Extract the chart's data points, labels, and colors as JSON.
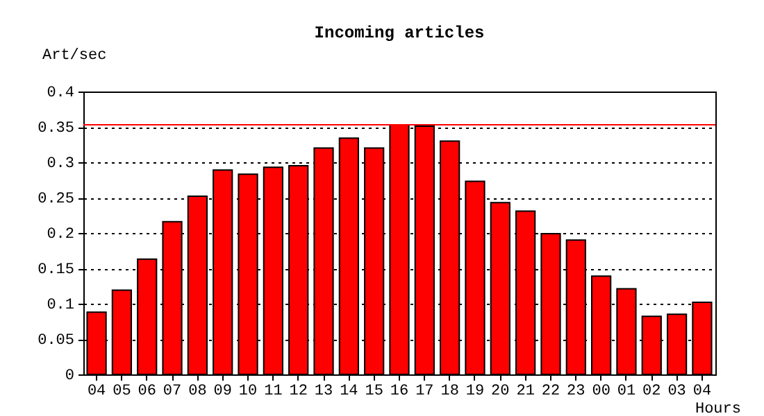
{
  "chart_data": {
    "type": "bar",
    "title": "Incoming articles",
    "xlabel": "Hours",
    "ylabel": "Art/sec",
    "categories": [
      "04",
      "05",
      "06",
      "07",
      "08",
      "09",
      "10",
      "11",
      "12",
      "13",
      "14",
      "15",
      "16",
      "17",
      "18",
      "19",
      "20",
      "21",
      "22",
      "23",
      "00",
      "01",
      "02",
      "03",
      "04"
    ],
    "values": [
      0.088,
      0.119,
      0.163,
      0.216,
      0.252,
      0.289,
      0.283,
      0.293,
      0.295,
      0.32,
      0.334,
      0.32,
      0.353,
      0.351,
      0.33,
      0.273,
      0.243,
      0.231,
      0.199,
      0.19,
      0.139,
      0.121,
      0.082,
      0.085,
      0.102
    ],
    "color": "#ff0000",
    "ylim": [
      0,
      0.4
    ],
    "yticks": [
      0,
      0.05,
      0.1,
      0.15,
      0.2,
      0.25,
      0.3,
      0.35,
      0.4
    ],
    "grid": "y",
    "ref_lines": [
      {
        "axis": "y",
        "value": 0.353,
        "color": "#ff0000"
      }
    ]
  }
}
